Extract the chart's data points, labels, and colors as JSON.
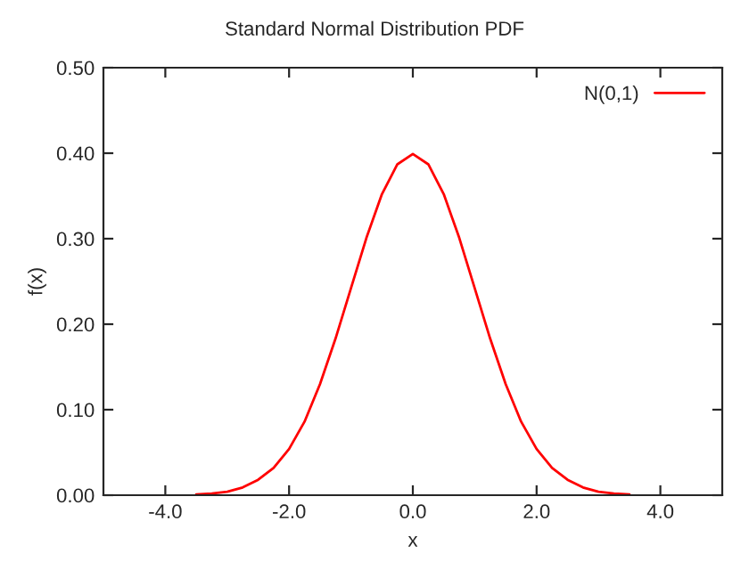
{
  "chart_data": {
    "type": "line",
    "title": "Standard Normal Distribution PDF",
    "xlabel": "x",
    "ylabel": "f(x)",
    "x": [
      -3.5,
      -3.25,
      -3.0,
      -2.75,
      -2.5,
      -2.25,
      -2.0,
      -1.75,
      -1.5,
      -1.25,
      -1.0,
      -0.75,
      -0.5,
      -0.25,
      0.0,
      0.25,
      0.5,
      0.75,
      1.0,
      1.25,
      1.5,
      1.75,
      2.0,
      2.25,
      2.5,
      2.75,
      3.0,
      3.25,
      3.5
    ],
    "series": [
      {
        "name": "N(0,1)",
        "color": "#ff0000",
        "values": [
          0.001,
          0.002,
          0.004,
          0.009,
          0.018,
          0.032,
          0.054,
          0.086,
          0.13,
          0.183,
          0.242,
          0.301,
          0.352,
          0.387,
          0.399,
          0.387,
          0.352,
          0.301,
          0.242,
          0.183,
          0.13,
          0.086,
          0.054,
          0.032,
          0.018,
          0.009,
          0.004,
          0.002,
          0.001
        ]
      }
    ],
    "xlim": [
      -5,
      5
    ],
    "xticks": [
      {
        "value": -4,
        "label": "-4.0"
      },
      {
        "value": -2,
        "label": "-2.0"
      },
      {
        "value": 0,
        "label": "0.0"
      },
      {
        "value": 2,
        "label": "2.0"
      },
      {
        "value": 4,
        "label": "4.0"
      }
    ],
    "ylim": [
      0,
      0.5
    ],
    "yticks": [
      {
        "value": 0,
        "label": "0.00"
      },
      {
        "value": 0.1,
        "label": "0.10"
      },
      {
        "value": 0.2,
        "label": "0.20"
      },
      {
        "value": 0.3,
        "label": "0.30"
      },
      {
        "value": 0.4,
        "label": "0.40"
      },
      {
        "value": 0.5,
        "label": "0.50"
      }
    ],
    "legend": "top right",
    "grid": false,
    "marker": "none",
    "line_style": "solid"
  }
}
